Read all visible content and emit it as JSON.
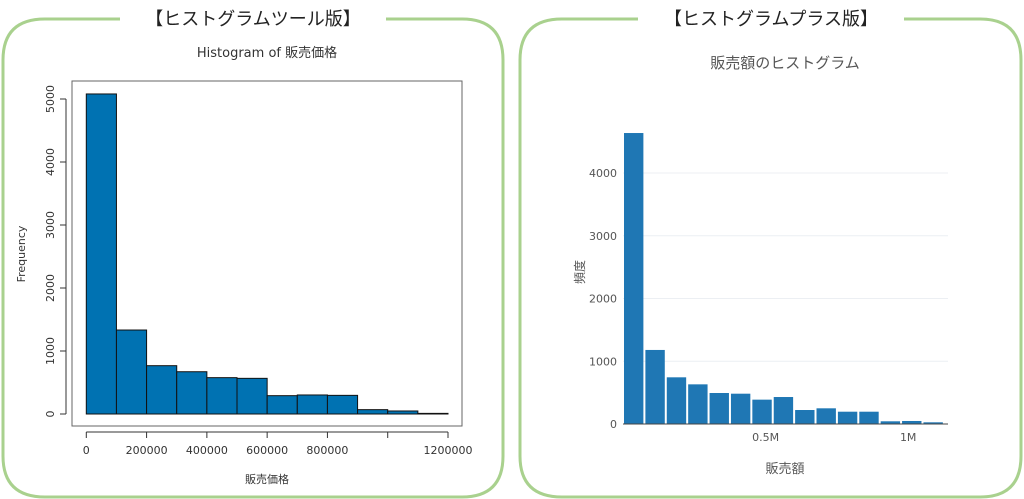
{
  "panels": {
    "left_heading": "【ヒストグラムツール版】",
    "right_heading": "【ヒストグラムプラス版】",
    "frame_color": "#a9d18e"
  },
  "chart_data": [
    {
      "type": "bar",
      "style": "base R histogram",
      "title": "Histogram of 販売価格",
      "xlabel": "販売価格",
      "ylabel": "Frequency",
      "bin_edges": [
        0,
        100000,
        200000,
        300000,
        400000,
        500000,
        600000,
        700000,
        800000,
        900000,
        1000000,
        1100000,
        1200000
      ],
      "values": [
        5080,
        1333,
        767,
        671,
        577,
        566,
        291,
        302,
        296,
        69,
        48,
        10
      ],
      "xlim": [
        0,
        1200000
      ],
      "ylim": [
        0,
        5200
      ],
      "x_ticks": [
        0,
        200000,
        400000,
        600000,
        800000,
        1000000,
        1200000
      ],
      "x_tick_labels": [
        "0",
        "200000",
        "400000",
        "600000",
        "800000",
        "",
        "1200000"
      ],
      "y_ticks": [
        0,
        1000,
        2000,
        3000,
        4000,
        5000
      ],
      "y_tick_labels": [
        "0",
        "1000",
        "2000",
        "3000",
        "4000",
        "5000"
      ],
      "bar_color": "#0072b2",
      "grid": false
    },
    {
      "type": "bar",
      "style": "plotly histogram",
      "title": "販売額のヒストグラム",
      "xlabel": "販売額",
      "ylabel": "頻度",
      "bin_edges": [
        0,
        75000,
        150000,
        225000,
        300000,
        375000,
        450000,
        525000,
        600000,
        675000,
        750000,
        825000,
        900000,
        975000,
        1050000,
        1125000
      ],
      "values": [
        4637,
        1180,
        744,
        632,
        494,
        483,
        388,
        430,
        223,
        250,
        196,
        196,
        43,
        48,
        27
      ],
      "xlim": [
        0,
        1140000
      ],
      "ylim": [
        0,
        4650
      ],
      "x_ticks": [
        500000,
        1000000
      ],
      "x_tick_labels": [
        "0.5M",
        "1M"
      ],
      "y_ticks": [
        0,
        1000,
        2000,
        3000,
        4000
      ],
      "y_tick_labels": [
        "0",
        "1000",
        "2000",
        "3000",
        "4000"
      ],
      "bar_color": "#1f77b4",
      "grid": true
    }
  ]
}
